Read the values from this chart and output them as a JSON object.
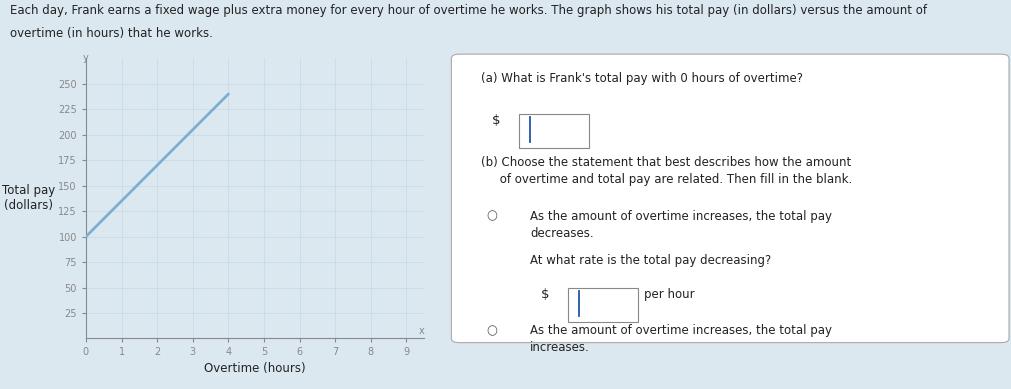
{
  "title_line1": "Each day, Frank earns a fixed wage plus extra money for every hour of overtime he works. The graph shows his total pay (in dollars) versus the amount of",
  "title_line2": "overtime (in hours) that he works.",
  "xlabel": "Overtime (hours)",
  "ylabel": "Total pay\n(dollars)",
  "xlim": [
    0,
    9.5
  ],
  "ylim": [
    0,
    275
  ],
  "xticks": [
    0,
    1,
    2,
    3,
    4,
    5,
    6,
    7,
    8,
    9
  ],
  "yticks": [
    25,
    50,
    75,
    100,
    125,
    150,
    175,
    200,
    225,
    250
  ],
  "line_x": [
    0,
    4
  ],
  "line_y": [
    100,
    240
  ],
  "line_color": "#7bafd4",
  "line_width": 2.0,
  "grid_color": "#c8daea",
  "axis_color": "#888888",
  "tick_fontsize": 7,
  "axis_label_fontsize": 8.5,
  "bg_color": "#dce8f0",
  "white": "#ffffff",
  "text_color": "#222222",
  "radio_color": "#555555",
  "cursor_color": "#2255aa",
  "title_fontsize": 8.5,
  "body_fontsize": 8.5
}
